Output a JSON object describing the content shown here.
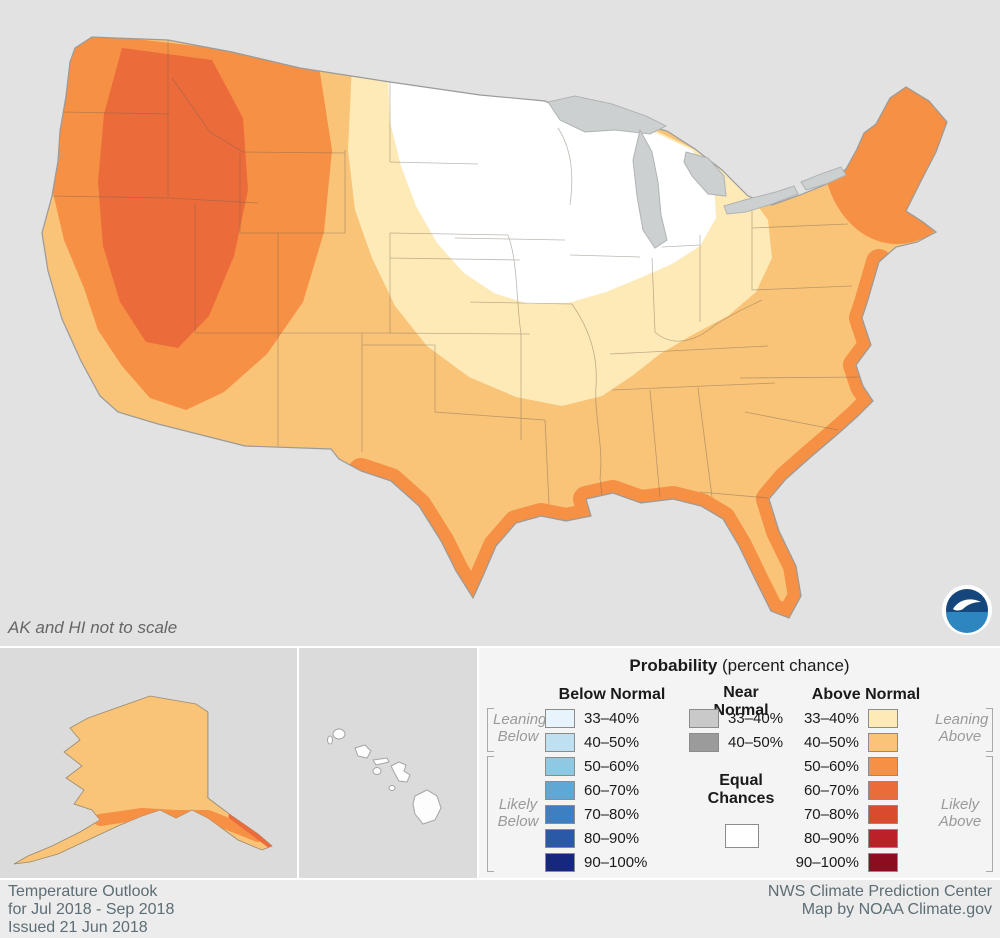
{
  "map": {
    "note": "AK and HI not to scale"
  },
  "palette": {
    "map_bg": "#e2e2e2",
    "equal_chances": "#ffffff",
    "above_33_40": "#fdeab7",
    "above_40_50": "#f9c378",
    "above_50_60": "#f59044",
    "above_60_70": "#ec6b3a",
    "above_70_80": "#da4a2e",
    "above_80_90": "#bb2228",
    "above_90_100": "#8c0d20",
    "below_33_40": "#e8f4fb",
    "below_40_50": "#bfe0f0",
    "below_50_60": "#8ec9e4",
    "below_60_70": "#5fa8d6",
    "below_70_80": "#3e7fc1",
    "below_80_90": "#2a59a8",
    "below_90_100": "#16277e",
    "near_33_40": "#c9c9c9",
    "near_40_50": "#9b9b9b"
  },
  "legend": {
    "title_bold": "Probability",
    "title_rest": " (percent chance)",
    "below": {
      "header": "Below Normal",
      "leaning_label": "Leaning Below",
      "likely_label": "Likely Below",
      "rows": [
        {
          "label": "33–40%",
          "color": "#e8f4fb"
        },
        {
          "label": "40–50%",
          "color": "#bfe0f0"
        },
        {
          "label": "50–60%",
          "color": "#8ec9e4"
        },
        {
          "label": "60–70%",
          "color": "#5fa8d6"
        },
        {
          "label": "70–80%",
          "color": "#3e7fc1"
        },
        {
          "label": "80–90%",
          "color": "#2a59a8"
        },
        {
          "label": "90–100%",
          "color": "#16277e"
        }
      ]
    },
    "near": {
      "header": "Near Normal",
      "equal_label": "Equal Chances",
      "equal_color": "#ffffff",
      "rows": [
        {
          "label": "33–40%",
          "color": "#c9c9c9"
        },
        {
          "label": "40–50%",
          "color": "#9b9b9b"
        }
      ]
    },
    "above": {
      "header": "Above Normal",
      "leaning_label": "Leaning Above",
      "likely_label": "Likely Above",
      "rows": [
        {
          "label": "33–40%",
          "color": "#fdeab7"
        },
        {
          "label": "40–50%",
          "color": "#f9c378"
        },
        {
          "label": "50–60%",
          "color": "#f59044"
        },
        {
          "label": "60–70%",
          "color": "#ec6b3a"
        },
        {
          "label": "70–80%",
          "color": "#da4a2e"
        },
        {
          "label": "80–90%",
          "color": "#bb2228"
        },
        {
          "label": "90–100%",
          "color": "#8c0d20"
        }
      ]
    }
  },
  "footer": {
    "left_lines": [
      "Temperature Outlook",
      "for Jul 2018 - Sep 2018",
      "Issued 21 Jun 2018"
    ],
    "right_lines": [
      "NWS Climate Prediction Center",
      "Map by NOAA Climate.gov"
    ]
  }
}
